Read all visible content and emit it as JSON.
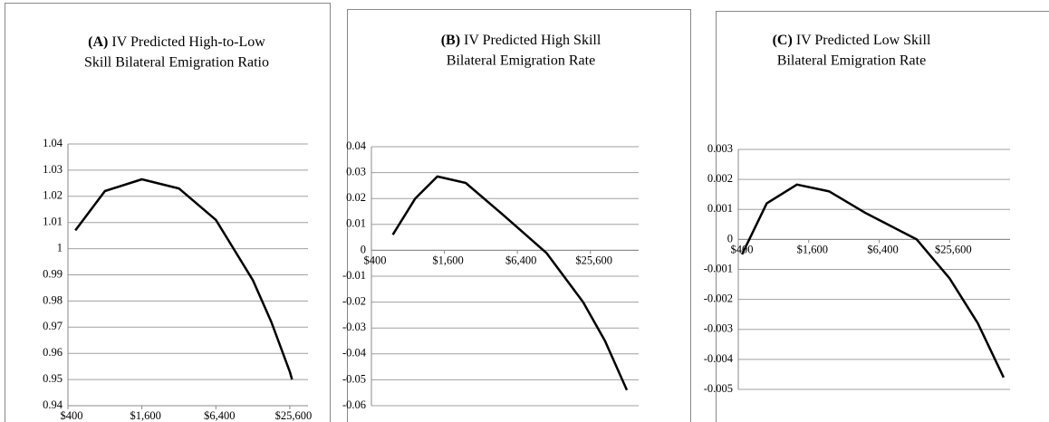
{
  "chart_data": [
    {
      "type": "line",
      "panel": "(A)",
      "title_lines": [
        "IV Predicted High-to-Low",
        "Skill Bilateral Emigration Ratio"
      ],
      "x": [
        460,
        800,
        1600,
        3200,
        6400,
        12800,
        18100,
        25600,
        26700
      ],
      "values": [
        1.007,
        1.022,
        1.0265,
        1.023,
        1.011,
        0.988,
        0.972,
        0.953,
        0.95
      ],
      "color": "#000000",
      "xscale": "log",
      "xlim": [
        400,
        36000
      ],
      "xticks": [
        {
          "value": 400,
          "label": "$400"
        },
        {
          "value": 1600,
          "label": "$1,600"
        },
        {
          "value": 6400,
          "label": "$6,400"
        },
        {
          "value": 25600,
          "label": "$25,600"
        }
      ],
      "ylim": [
        0.94,
        1.04
      ],
      "yticks": [
        0.94,
        0.95,
        0.96,
        0.97,
        0.98,
        0.99,
        1,
        1.01,
        1.02,
        1.03,
        1.04
      ],
      "grid": true
    },
    {
      "type": "line",
      "panel": "(B)",
      "title_lines": [
        "IV Predicted High Skill",
        "Bilateral Emigration Rate"
      ],
      "x": [
        600,
        920,
        1400,
        2400,
        4800,
        11100,
        22300,
        33800,
        51200
      ],
      "values": [
        0.006,
        0.02,
        0.0285,
        0.026,
        0.014,
        -0.001,
        -0.02,
        -0.035,
        -0.054
      ],
      "color": "#000000",
      "xscale": "log",
      "xlim": [
        400,
        64000
      ],
      "xticks": [
        {
          "value": 400,
          "label": "$400"
        },
        {
          "value": 1600,
          "label": "$1,600"
        },
        {
          "value": 6400,
          "label": "$6,400"
        },
        {
          "value": 25600,
          "label": "$25,600"
        }
      ],
      "ylim": [
        -0.06,
        0.04
      ],
      "yticks": [
        -0.06,
        -0.05,
        -0.04,
        -0.03,
        -0.02,
        -0.01,
        0,
        0.01,
        0.02,
        0.03,
        0.04
      ],
      "grid": true
    },
    {
      "type": "line",
      "panel": "(C)",
      "title_lines": [
        "IV Predicted Low Skill",
        "Bilateral Emigration Rate"
      ],
      "x": [
        430,
        700,
        1270,
        2400,
        4800,
        13400,
        25600,
        44600,
        74000
      ],
      "values": [
        -0.0005,
        0.0012,
        0.00183,
        0.0016,
        0.0009,
        0,
        -0.0013,
        -0.0028,
        -0.0046
      ],
      "color": "#000000",
      "xscale": "log",
      "xlim": [
        400,
        84000
      ],
      "xticks": [
        {
          "value": 400,
          "label": "$400"
        },
        {
          "value": 1600,
          "label": "$1,600"
        },
        {
          "value": 6400,
          "label": "$6,400"
        },
        {
          "value": 25600,
          "label": "$25,600"
        }
      ],
      "ylim": [
        -0.005,
        0.003
      ],
      "yticks": [
        -0.005,
        -0.004,
        -0.003,
        -0.002,
        -0.001,
        0,
        0.001,
        0.002,
        0.003
      ],
      "grid": true
    }
  ]
}
